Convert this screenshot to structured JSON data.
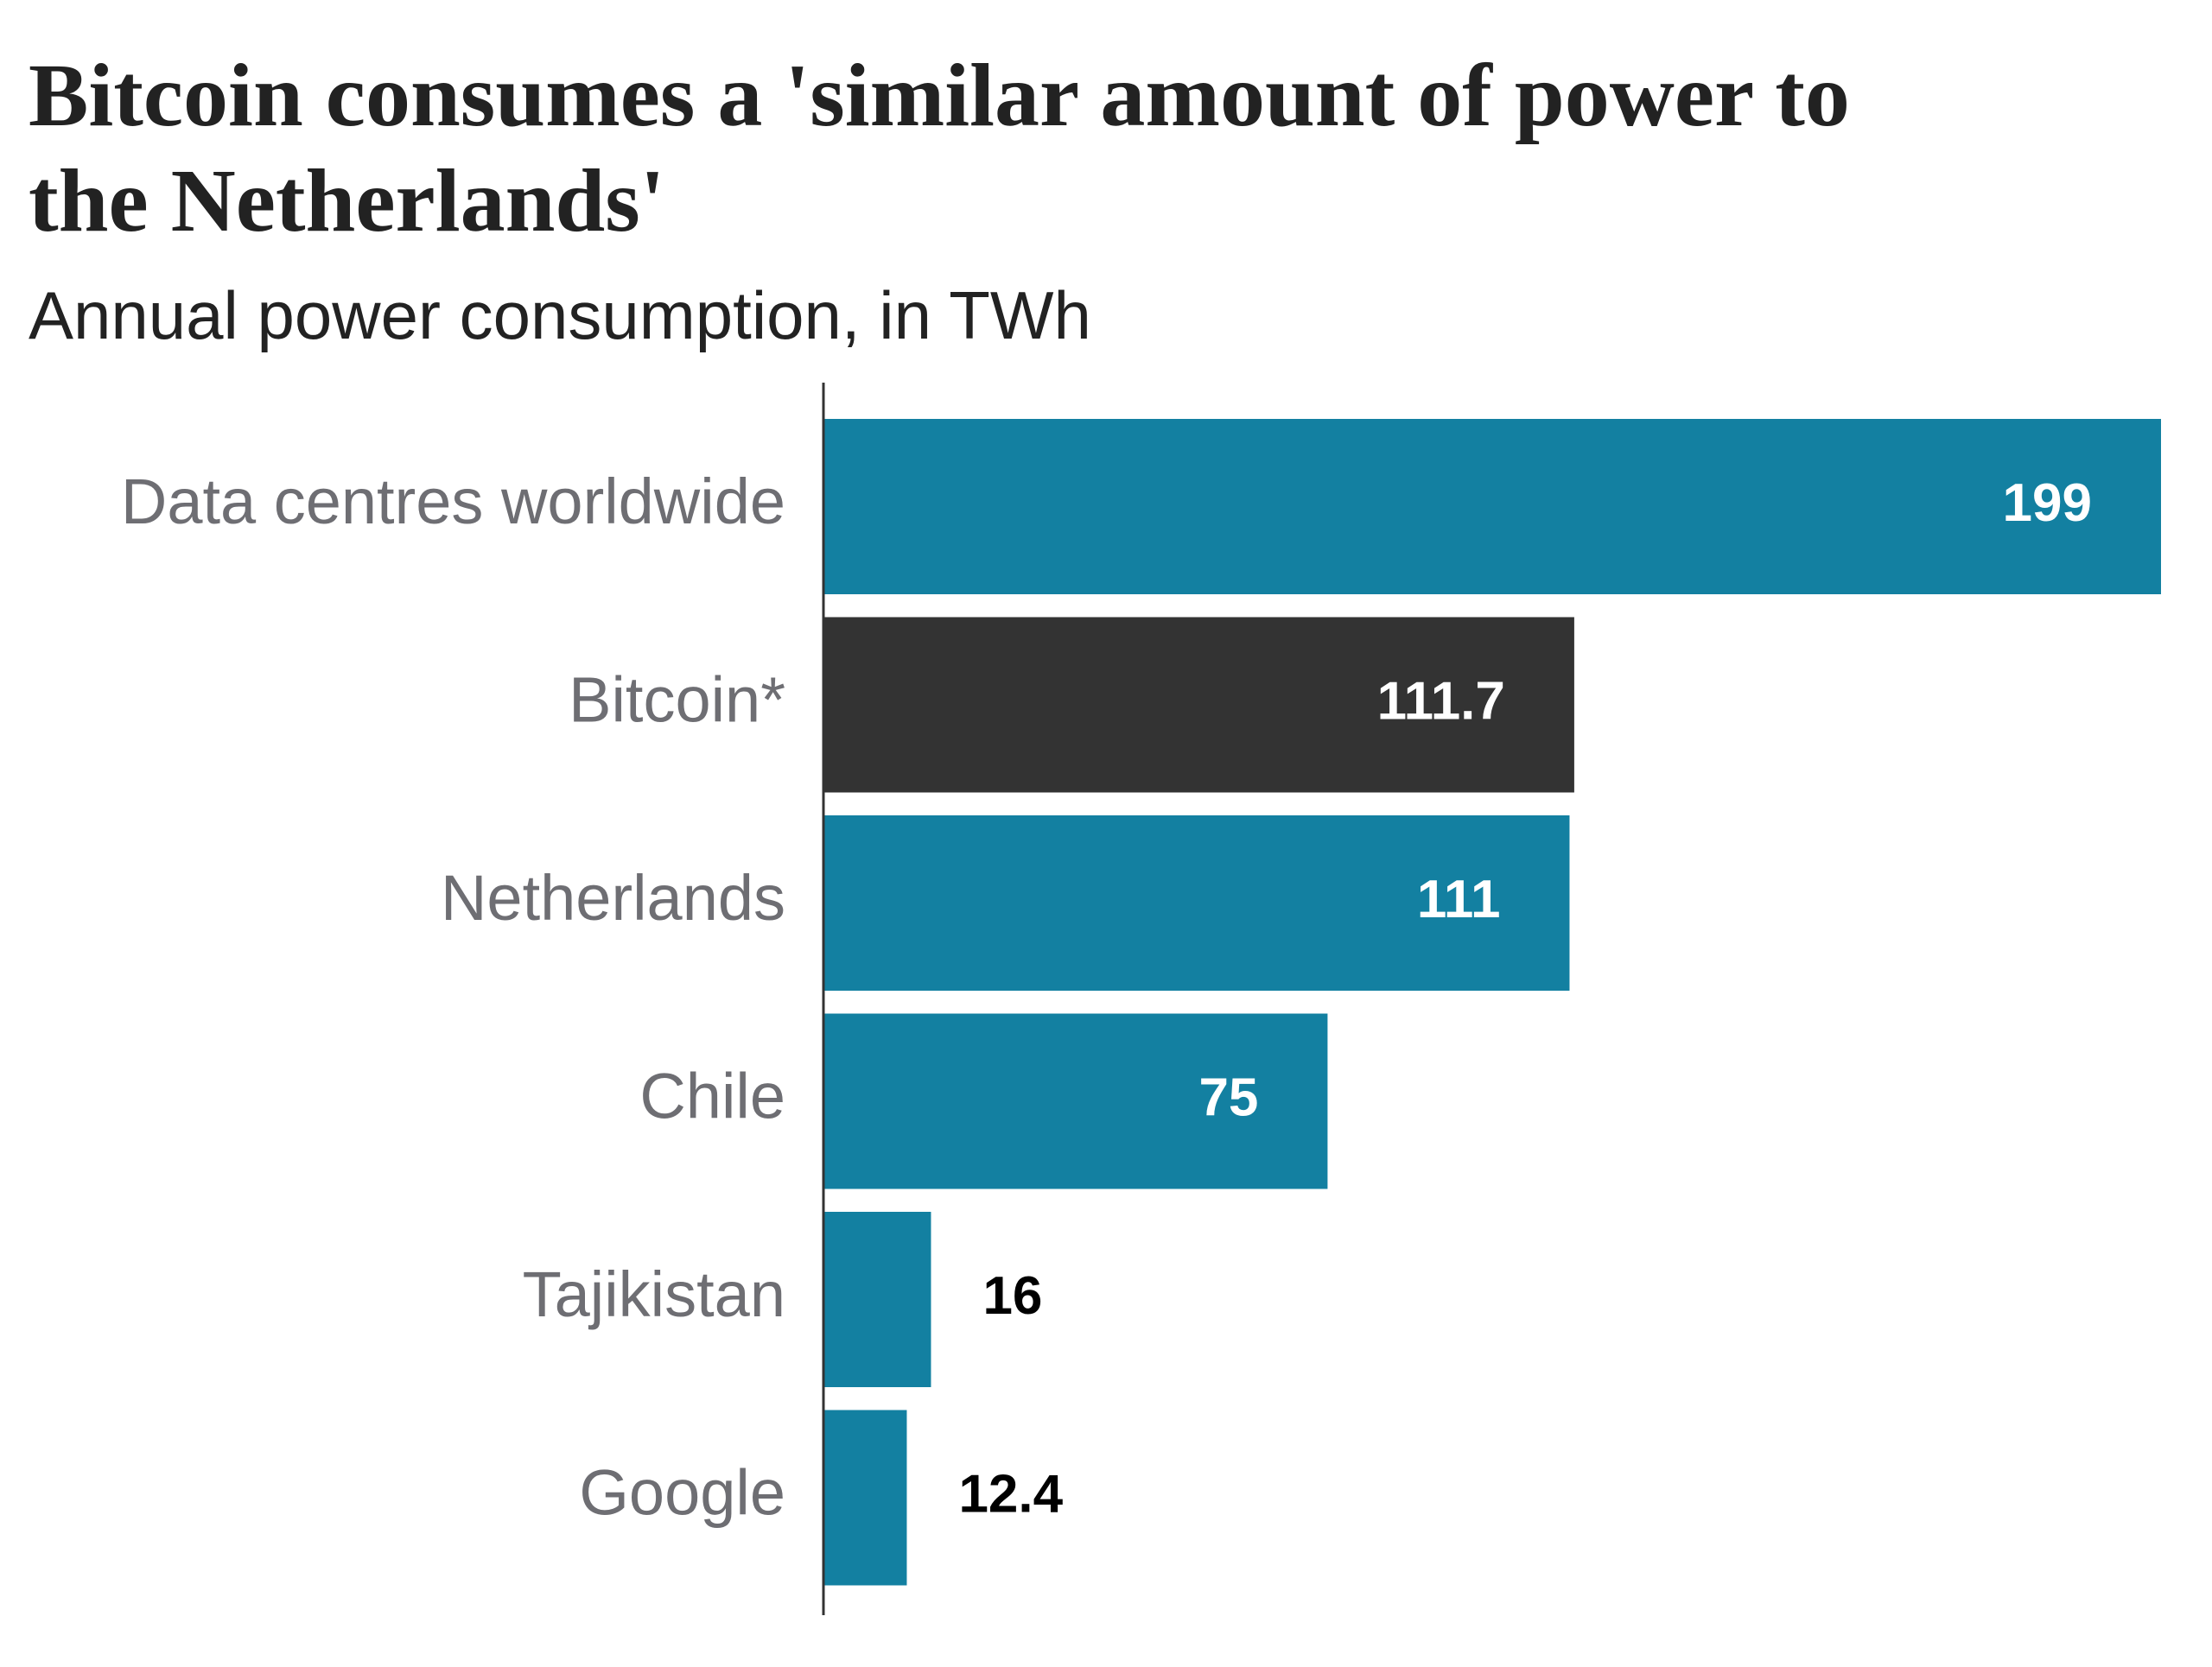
{
  "chart_data": {
    "type": "bar",
    "orientation": "horizontal",
    "title": "Bitcoin consumes a 'similar amount of power to the Netherlands'",
    "subtitle": "Annual power consumption, in TWh",
    "categories": [
      "Data centres worldwide",
      "Bitcoin*",
      "Netherlands",
      "Chile",
      "Tajikistan",
      "Google"
    ],
    "values": [
      199,
      111.7,
      111,
      75,
      16,
      12.4
    ],
    "colors": [
      "#1380a1",
      "#333333",
      "#1380a1",
      "#1380a1",
      "#1380a1",
      "#1380a1"
    ]
  }
}
